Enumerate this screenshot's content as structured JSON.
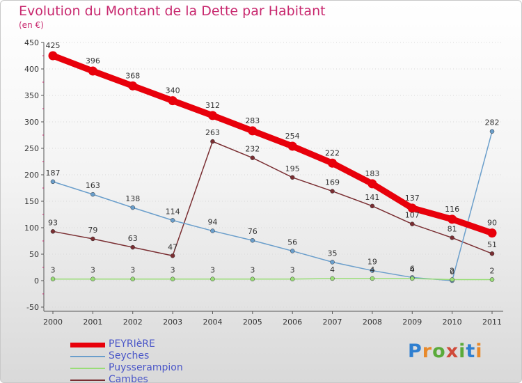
{
  "header": {
    "title": "Evolution du Montant de la Dette par Habitant",
    "subtitle": "(en €)"
  },
  "chart_data": {
    "type": "line",
    "title": "Evolution du Montant de la Dette par Habitant",
    "subtitle": "(en €)",
    "xlabel": "",
    "ylabel": "",
    "x": [
      "2000",
      "2001",
      "2002",
      "2003",
      "2004",
      "2005",
      "2006",
      "2007",
      "2008",
      "2009",
      "2010",
      "2011"
    ],
    "ylim": [
      -50,
      450
    ],
    "yticks": [
      -50,
      0,
      50,
      100,
      150,
      200,
      250,
      300,
      350,
      400,
      450
    ],
    "grid": "horizontal dotted",
    "legend_position": "bottom-left",
    "series": [
      {
        "name": "PEYRIèRE",
        "color": "#e8000b",
        "values": [
          425,
          396,
          368,
          340,
          312,
          283,
          254,
          222,
          183,
          137,
          116,
          90
        ]
      },
      {
        "name": "Seyches",
        "color": "#6a9ecb",
        "values": [
          187,
          163,
          138,
          114,
          94,
          76,
          56,
          35,
          19,
          6,
          0,
          282
        ]
      },
      {
        "name": "Puysserampion",
        "color": "#99dd77",
        "values": [
          3,
          3,
          3,
          3,
          3,
          3,
          3,
          4,
          4,
          4,
          2,
          2
        ]
      },
      {
        "name": "Cambes",
        "color": "#7a2e32",
        "values": [
          93,
          79,
          63,
          47,
          263,
          232,
          195,
          169,
          141,
          107,
          81,
          51
        ]
      }
    ]
  },
  "legend": {
    "items": [
      {
        "label": "PEYRIèRE"
      },
      {
        "label": "Seyches"
      },
      {
        "label": "Puysserampion"
      },
      {
        "label": "Cambes"
      }
    ]
  },
  "logo": {
    "text": "Proxiti",
    "icon": "proxiti-logo"
  }
}
